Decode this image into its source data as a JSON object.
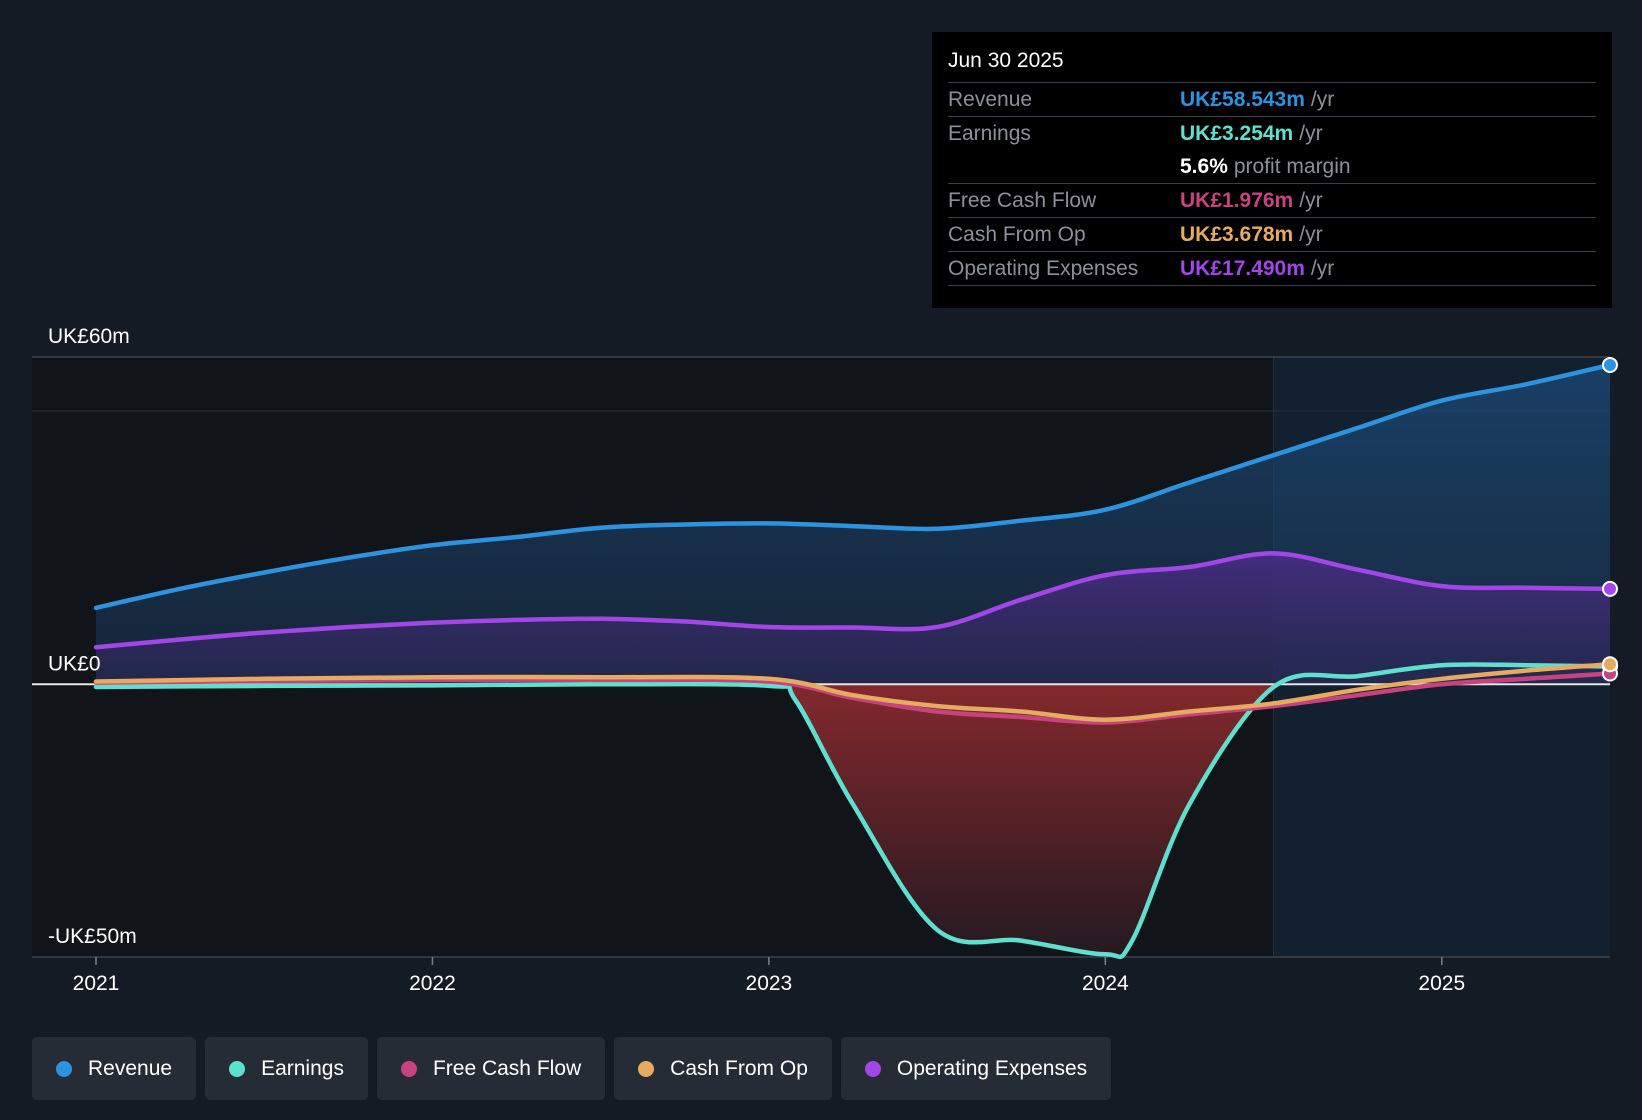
{
  "chart_data": {
    "type": "area",
    "x_ticks": [
      "2021",
      "2022",
      "2023",
      "2024",
      "2025"
    ],
    "xlim": [
      2021.0,
      2025.5
    ],
    "ylim": [
      -50,
      60
    ],
    "y_labels": [
      {
        "value": 60,
        "text": "UK£60m"
      },
      {
        "value": 0,
        "text": "UK£0"
      },
      {
        "value": -50,
        "text": "-UK£50m"
      }
    ],
    "forecast_start": 2024.5,
    "series": [
      {
        "name": "Revenue",
        "color": "#2c93e0",
        "x": [
          2021.0,
          2021.25,
          2021.5,
          2021.75,
          2022.0,
          2022.25,
          2022.5,
          2022.75,
          2023.0,
          2023.25,
          2023.5,
          2023.75,
          2024.0,
          2024.25,
          2024.5,
          2024.75,
          2025.0,
          2025.25,
          2025.5
        ],
        "values": [
          14.0,
          17.5,
          20.5,
          23.2,
          25.5,
          27.0,
          28.7,
          29.3,
          29.5,
          29.0,
          28.5,
          30.0,
          32.0,
          37.0,
          42.0,
          47.0,
          52.0,
          55.0,
          58.543
        ]
      },
      {
        "name": "Earnings",
        "color": "#5ee0cf",
        "x": [
          2021.0,
          2021.5,
          2022.0,
          2022.5,
          2023.0,
          2023.08,
          2023.25,
          2023.5,
          2023.75,
          2024.0,
          2024.08,
          2024.25,
          2024.5,
          2024.75,
          2025.0,
          2025.25,
          2025.5
        ],
        "values": [
          -0.5,
          -0.3,
          -0.2,
          0.0,
          -0.3,
          -3.0,
          -22.0,
          -45.0,
          -47.0,
          -49.5,
          -47.0,
          -22.0,
          -0.5,
          1.5,
          3.5,
          3.5,
          3.254
        ]
      },
      {
        "name": "Free Cash Flow",
        "color": "#c7437f",
        "x": [
          2021.0,
          2021.5,
          2022.0,
          2022.5,
          2023.0,
          2023.25,
          2023.5,
          2023.75,
          2024.0,
          2024.25,
          2024.5,
          2024.75,
          2025.0,
          2025.25,
          2025.5
        ],
        "values": [
          0.3,
          0.6,
          0.8,
          0.8,
          0.5,
          -2.5,
          -5.0,
          -6.0,
          -7.0,
          -5.5,
          -4.0,
          -2.0,
          0.0,
          1.0,
          1.976
        ]
      },
      {
        "name": "Cash From Op",
        "color": "#e5ab5e",
        "x": [
          2021.0,
          2021.5,
          2022.0,
          2022.5,
          2023.0,
          2023.25,
          2023.5,
          2023.75,
          2024.0,
          2024.25,
          2024.5,
          2024.75,
          2025.0,
          2025.25,
          2025.5
        ],
        "values": [
          0.5,
          1.0,
          1.3,
          1.3,
          1.0,
          -2.0,
          -4.0,
          -5.0,
          -6.5,
          -5.0,
          -3.5,
          -1.0,
          1.0,
          2.5,
          3.678
        ]
      },
      {
        "name": "Operating Expenses",
        "color": "#a246e8",
        "x": [
          2021.0,
          2021.25,
          2021.5,
          2021.75,
          2022.0,
          2022.25,
          2022.5,
          2022.75,
          2023.0,
          2023.25,
          2023.5,
          2023.75,
          2024.0,
          2024.25,
          2024.5,
          2024.75,
          2025.0,
          2025.25,
          2025.5
        ],
        "values": [
          6.8,
          8.2,
          9.5,
          10.5,
          11.3,
          11.8,
          12.0,
          11.5,
          10.5,
          10.4,
          10.5,
          15.5,
          20.0,
          21.5,
          24.0,
          21.0,
          18.0,
          17.7,
          17.49
        ]
      }
    ]
  },
  "tooltip": {
    "date": "Jun 30 2025",
    "rows": [
      {
        "label": "Revenue",
        "value": "UK£58.543m",
        "unit": "/yr",
        "color": "#2c93e0"
      },
      {
        "label": "Earnings",
        "value": "UK£3.254m",
        "unit": "/yr",
        "color": "#5ee0cf"
      },
      {
        "label": "",
        "value": "5.6%",
        "unit": "profit margin",
        "color": "#ffffff"
      },
      {
        "label": "Free Cash Flow",
        "value": "UK£1.976m",
        "unit": "/yr",
        "color": "#c7437f"
      },
      {
        "label": "Cash From Op",
        "value": "UK£3.678m",
        "unit": "/yr",
        "color": "#e5ab5e"
      },
      {
        "label": "Operating Expenses",
        "value": "UK£17.490m",
        "unit": "/yr",
        "color": "#a246e8"
      }
    ]
  },
  "legend": [
    {
      "label": "Revenue",
      "color": "#2c93e0"
    },
    {
      "label": "Earnings",
      "color": "#5ee0cf"
    },
    {
      "label": "Free Cash Flow",
      "color": "#c7437f"
    },
    {
      "label": "Cash From Op",
      "color": "#e5ab5e"
    },
    {
      "label": "Operating Expenses",
      "color": "#a246e8"
    }
  ]
}
